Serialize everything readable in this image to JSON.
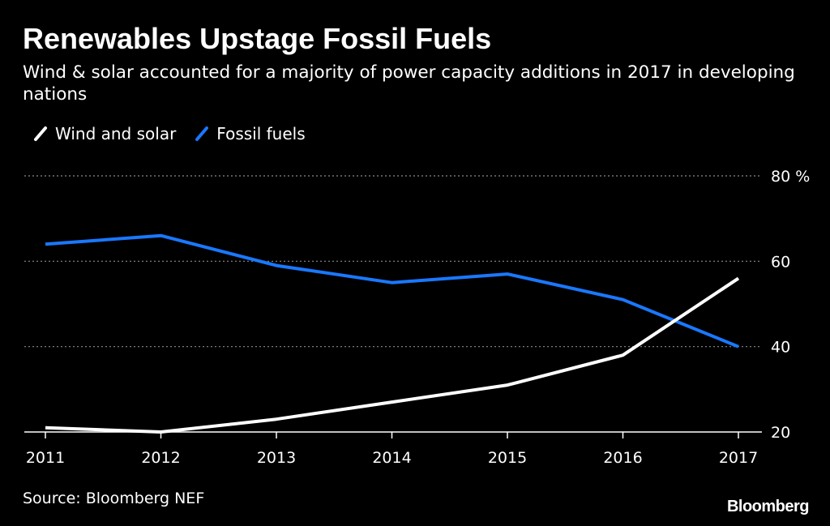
{
  "chart_data": {
    "type": "line",
    "title": "Renewables Upstage Fossil Fuels",
    "subtitle": "Wind & solar accounted for a majority of power capacity additions in 2017 in developing nations",
    "x": [
      "2011",
      "2012",
      "2013",
      "2014",
      "2015",
      "2016",
      "2017"
    ],
    "series": [
      {
        "name": "Wind and solar",
        "color": "#ffffff",
        "values": [
          21,
          20,
          23,
          27,
          31,
          38,
          56
        ]
      },
      {
        "name": "Fossil fuels",
        "color": "#1a78ff",
        "values": [
          64,
          66,
          59,
          55,
          57,
          51,
          40
        ]
      }
    ],
    "ylim": [
      20,
      80
    ],
    "yticks": [
      {
        "value": 80,
        "label": "80 %"
      },
      {
        "value": 60,
        "label": "60"
      },
      {
        "value": 40,
        "label": "40"
      },
      {
        "value": 20,
        "label": "20"
      }
    ],
    "xlabel": "",
    "ylabel": "",
    "grid": true,
    "legend_position": "top-left"
  },
  "source": "Source: Bloomberg NEF",
  "brand": "Bloomberg",
  "colors": {
    "background": "#000000",
    "text": "#ffffff",
    "grid": "#8a8a8a"
  }
}
